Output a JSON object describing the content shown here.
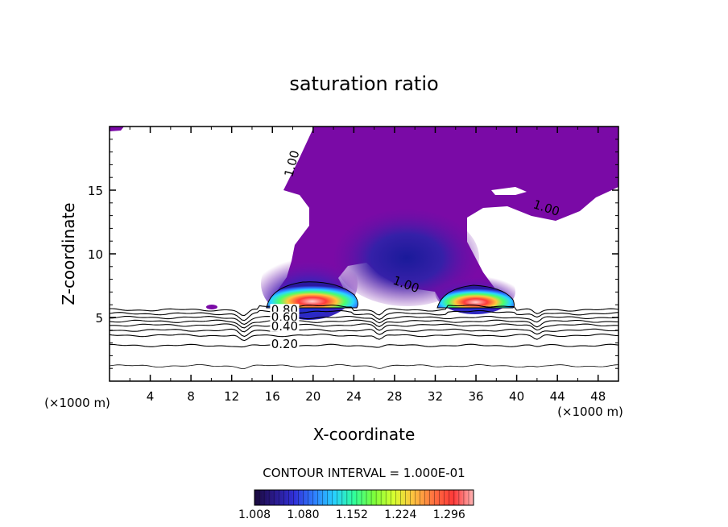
{
  "chart_data": {
    "type": "contour",
    "title": "saturation ratio",
    "xlabel": "X-coordinate",
    "ylabel": "Z-coordinate",
    "x_unit_left": "(×1000 m)",
    "x_unit_right": "(×1000 m)",
    "xlim": [
      0,
      50
    ],
    "ylim": [
      0,
      20
    ],
    "xticks": [
      4,
      8,
      12,
      16,
      20,
      24,
      28,
      32,
      36,
      40,
      44,
      48
    ],
    "yticks": [
      5,
      10,
      15
    ],
    "contour_interval_text": "CONTOUR INTERVAL = 1.000E-01",
    "contour_labels": [
      {
        "text": "1.00",
        "x": 18.3,
        "y": 17.0
      },
      {
        "text": "1.00",
        "x": 42.8,
        "y": 13.3
      },
      {
        "text": "1.00",
        "x": 29.0,
        "y": 7.3
      },
      {
        "text": "0.80",
        "x": 17.2,
        "y": 5.3
      },
      {
        "text": "0.60",
        "x": 17.2,
        "y": 4.7
      },
      {
        "text": "0.40",
        "x": 17.2,
        "y": 4.0
      },
      {
        "text": "0.20",
        "x": 17.2,
        "y": 2.6
      }
    ],
    "subsaturated_contour_levels": [
      0.1,
      0.2,
      0.3,
      0.4,
      0.5,
      0.6,
      0.7,
      0.8,
      0.9
    ],
    "colorbar": {
      "ticks": [
        "1.008",
        "1.080",
        "1.152",
        "1.224",
        "1.296"
      ],
      "range": [
        1.008,
        1.332
      ],
      "colors": [
        "#1a0a3c",
        "#2a1a8c",
        "#3030d8",
        "#2f7fff",
        "#27d0ff",
        "#30ff9a",
        "#7cff3a",
        "#d8ff30",
        "#ffc040",
        "#ff7040",
        "#ff3838",
        "#ffb4b4"
      ]
    },
    "colors": {
      "supersaturated_fill": "#7a0aa6",
      "frame": "#000000"
    }
  }
}
